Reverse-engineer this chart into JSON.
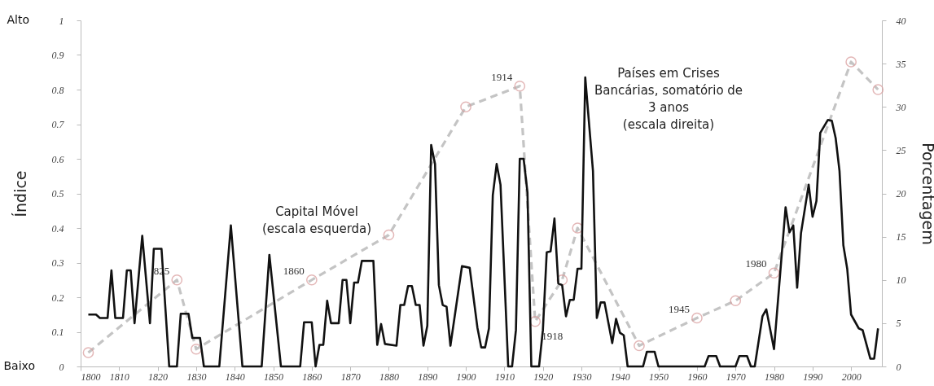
{
  "chart_data": {
    "type": "line",
    "ylabel": "Índice",
    "y2label": "Porcentagem",
    "xlim": [
      1800,
      2008
    ],
    "xticks": [
      1800,
      1810,
      1820,
      1830,
      1840,
      1850,
      1860,
      1870,
      1880,
      1890,
      1900,
      1910,
      1920,
      1930,
      1940,
      1950,
      1960,
      1970,
      1980,
      1990,
      2000
    ],
    "ylim": [
      0,
      1
    ],
    "yticks": [
      0,
      0.1,
      0.2,
      0.3,
      0.4,
      0.5,
      0.6,
      0.7,
      0.8,
      0.9,
      1
    ],
    "y2lim": [
      0,
      40
    ],
    "y2ticks": [
      0,
      5,
      10,
      15,
      20,
      25,
      30,
      35,
      40
    ],
    "grid": false,
    "legend": false,
    "series": [
      {
        "name": "Capital Móvel (escala esquerda)",
        "color": "#c4c4c4",
        "line_style": "dashed",
        "marker": "circle",
        "x": [
          1802,
          1825,
          1830,
          1860,
          1880,
          1900,
          1914,
          1918,
          1925,
          1929,
          1945,
          1960,
          1970,
          1980,
          2000,
          2007
        ],
        "values": [
          0.04,
          0.25,
          0.05,
          0.25,
          0.38,
          0.75,
          0.81,
          0.13,
          0.25,
          0.4,
          0.06,
          0.14,
          0.19,
          0.27,
          0.88,
          0.8
        ]
      },
      {
        "name": "Países em Crises Bancárias, somatório de 3 anos (escala direita)",
        "color": "#111111",
        "axis": "y2",
        "x": [
          1802,
          1804,
          1805,
          1807,
          1808,
          1809,
          1811,
          1812,
          1813,
          1814,
          1816,
          1818,
          1819,
          1821,
          1823,
          1825,
          1826,
          1828,
          1829,
          1831,
          1832,
          1836,
          1839,
          1842,
          1847,
          1849,
          1852,
          1857,
          1858,
          1860,
          1861,
          1862,
          1863,
          1864,
          1865,
          1867,
          1868,
          1869,
          1870,
          1871,
          1872,
          1873,
          1876,
          1877,
          1878,
          1879,
          1882,
          1883,
          1884,
          1885,
          1886,
          1887,
          1888,
          1889,
          1890,
          1891,
          1892,
          1893,
          1894,
          1895,
          1896,
          1899,
          1901,
          1903,
          1904,
          1905,
          1906,
          1907,
          1908,
          1909,
          1911,
          1912,
          1913,
          1914,
          1915,
          1916,
          1917,
          1919,
          1920,
          1921,
          1922,
          1923,
          1924,
          1925,
          1926,
          1927,
          1928,
          1929,
          1930,
          1931,
          1933,
          1934,
          1935,
          1936,
          1938,
          1939,
          1940,
          1941,
          1942,
          1946,
          1947,
          1949,
          1950,
          1962,
          1963,
          1965,
          1966,
          1970,
          1971,
          1973,
          1974,
          1975,
          1977,
          1978,
          1980,
          1983,
          1984,
          1985,
          1986,
          1987,
          1989,
          1990,
          1991,
          1992,
          1994,
          1995,
          1996,
          1997,
          1998,
          1999,
          2000,
          2002,
          2003,
          2005,
          2006,
          2007
        ],
        "values": [
          6,
          6,
          5.6,
          5.6,
          11.1,
          5.6,
          5.6,
          11.1,
          11.1,
          5,
          15.1,
          5,
          13.6,
          13.6,
          0,
          0,
          6.1,
          6.1,
          3.3,
          3.3,
          0,
          0,
          16.3,
          0,
          0,
          12.9,
          0,
          0,
          5.1,
          5.1,
          0,
          2.5,
          2.5,
          7.6,
          5,
          5,
          10,
          10,
          5,
          9.7,
          9.7,
          12.2,
          12.2,
          2.5,
          4.9,
          2.6,
          2.4,
          7.1,
          7.1,
          9.3,
          9.3,
          7.1,
          7.1,
          2.4,
          4.7,
          25.6,
          23.4,
          9.4,
          7.1,
          6.9,
          2.4,
          11.6,
          11.4,
          4.5,
          2.2,
          2.2,
          4.4,
          19.8,
          23.4,
          21,
          0,
          0,
          4.2,
          24,
          24,
          20.1,
          0,
          0,
          4.2,
          13.2,
          13.3,
          17.1,
          9.6,
          9.4,
          5.8,
          7.7,
          7.7,
          11.3,
          11.3,
          33.4,
          22.6,
          5.6,
          7.4,
          7.4,
          2.7,
          5.5,
          3.9,
          3.6,
          0,
          0,
          1.7,
          1.7,
          0,
          0,
          1.2,
          1.2,
          0,
          0,
          1.2,
          1.2,
          0,
          0,
          5.8,
          6.6,
          2,
          18.4,
          15.5,
          16.3,
          9.1,
          15.4,
          21,
          17.3,
          19.1,
          27,
          28.5,
          28.4,
          26.4,
          22.6,
          14,
          11.3,
          6,
          4.4,
          4.2,
          0.9,
          0.9,
          4.4
        ]
      }
    ],
    "annotations": [
      "Alto",
      "Baixo",
      {
        "text": "825",
        "x": 1825,
        "y": 0.25
      },
      {
        "text": "1860",
        "x": 1860,
        "y": 0.25
      },
      {
        "text": "1914",
        "x": 1914,
        "y": 0.81
      },
      {
        "text": "1918",
        "x": 1918,
        "y": 0.13
      },
      {
        "text": "1945",
        "x": 1960,
        "y": 0.14
      },
      {
        "text": "1980",
        "x": 1980,
        "y": 0.27
      }
    ]
  }
}
